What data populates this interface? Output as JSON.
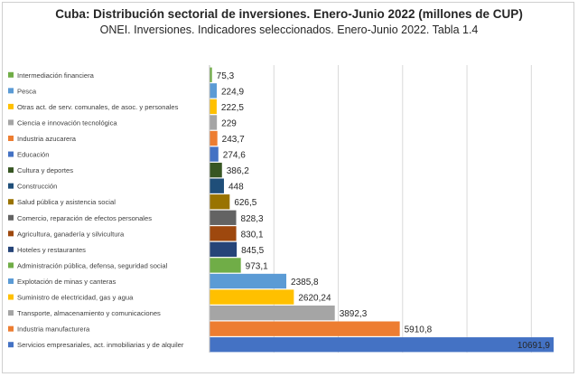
{
  "chart_data": {
    "type": "bar",
    "orientation": "horizontal",
    "title": "Cuba: Distribución sectorial de inversiones. Enero-Junio 2022 (millones de CUP)",
    "subtitle": "ONEI. Inversiones. Indicadores seleccionados. Enero-Junio 2022. Tabla 1.4",
    "xlabel": "",
    "ylabel": "",
    "xlim": [
      0,
      10691.9
    ],
    "grid": true,
    "legend": "left",
    "categories": [
      "Intermediación financiera",
      "Pesca",
      "Otras act. de serv. comunales, de asoc. y personales",
      "Ciencia e innovación tecnológica",
      "Industria azucarera",
      "Educación",
      "Cultura y deportes",
      "Construcción",
      "Salud pública y asistencia social",
      "Comercio, reparación de efectos personales",
      "Agricultura, ganadería y silvicultura",
      "Hoteles y restaurantes",
      "Administración pública, defensa, seguridad social",
      "Explotación de minas y canteras",
      "Suministro de electricidad, gas y agua",
      "Transporte, almacenamiento y comunicaciones",
      "Industria manufacturera",
      "Servicios empresariales, act. inmobiliarias y de alquiler"
    ],
    "values": [
      75.3,
      224.9,
      222.5,
      229,
      243.7,
      274.6,
      386.2,
      448,
      626.5,
      828.3,
      830.1,
      845.5,
      973.1,
      2385.8,
      2620.24,
      3892.3,
      5910.8,
      10691.9
    ],
    "value_labels": [
      "75,3",
      "224,9",
      "222,5",
      "229",
      "243,7",
      "274,6",
      "386,2",
      "448",
      "626,5",
      "828,3",
      "830,1",
      "845,5",
      "973,1",
      "2385,8",
      "2620,24",
      "3892,3",
      "5910,8",
      "10691,9"
    ],
    "colors": [
      "#70ad47",
      "#5b9bd5",
      "#ffc000",
      "#a5a5a5",
      "#ed7d31",
      "#4472c4",
      "#375623",
      "#1f4e79",
      "#997300",
      "#636363",
      "#9e480e",
      "#264478",
      "#70ad47",
      "#5b9bd5",
      "#ffc000",
      "#a5a5a5",
      "#ed7d31",
      "#4472c4"
    ]
  }
}
